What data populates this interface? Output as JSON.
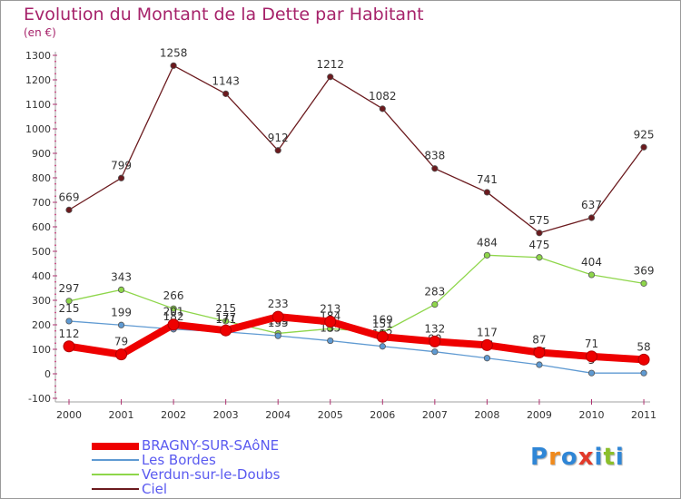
{
  "title": "Evolution du Montant de la Dette par Habitant",
  "unit": "(en €)",
  "logo": {
    "letters": [
      "P",
      "r",
      "o",
      "x",
      "i",
      "t",
      "i"
    ],
    "colors": [
      "#2f86d6",
      "#f08a1c",
      "#2f86d6",
      "#e23a2a",
      "#2f86d6",
      "#8bbf2a",
      "#2f86d6"
    ]
  },
  "chart_data": {
    "type": "line",
    "x": [
      "2000",
      "2001",
      "2002",
      "2003",
      "2004",
      "2005",
      "2006",
      "2007",
      "2008",
      "2009",
      "2010",
      "2011"
    ],
    "ylim": [
      -100,
      1300
    ],
    "yticks": [
      "-100",
      "0",
      "100",
      "200",
      "300",
      "400",
      "500",
      "600",
      "700",
      "800",
      "900",
      "1000",
      "1100",
      "1200",
      "1300"
    ],
    "grid": false,
    "legend_position": "bottom-left",
    "series": [
      {
        "name": "Ciel",
        "color": "#6b1a1e",
        "values": [
          669,
          799,
          1258,
          1143,
          912,
          1212,
          1082,
          838,
          741,
          575,
          637,
          925
        ],
        "labels": [
          "669",
          "799",
          "1258",
          "1143",
          "912",
          "1212",
          "1082",
          "838",
          "741",
          "575",
          "637",
          "925"
        ]
      },
      {
        "name": "Verdun-sur-le-Doubs",
        "color": "#8ed64a",
        "values": [
          297,
          343,
          266,
          215,
          165,
          184,
          169,
          283,
          484,
          475,
          404,
          369
        ],
        "labels": [
          "297",
          "343",
          "266",
          "215",
          "165",
          "184",
          "169",
          "283",
          "484",
          "475",
          "404",
          "369"
        ]
      },
      {
        "name": "Les Bordes",
        "color": "#5f9ad2",
        "values": [
          215,
          199,
          182,
          171,
          155,
          135,
          112,
          90,
          64,
          37,
          3,
          3
        ],
        "labels": [
          "215",
          "199",
          "182",
          "171",
          "155",
          "135",
          "112",
          "90",
          "64",
          "37",
          "3",
          "3"
        ]
      },
      {
        "name": "BRAGNY-SUR-SAôNE",
        "color": "#ee0000",
        "values": [
          112,
          79,
          201,
          177,
          233,
          213,
          151,
          132,
          117,
          87,
          71,
          58
        ],
        "labels": [
          "112",
          "79",
          "201",
          "177",
          "233",
          "213",
          "151",
          "132",
          "117",
          "87",
          "71",
          "58"
        ]
      }
    ],
    "legend": [
      "BRAGNY-SUR-SAôNE",
      "Les Bordes",
      "Verdun-sur-le-Doubs",
      "Ciel"
    ]
  }
}
